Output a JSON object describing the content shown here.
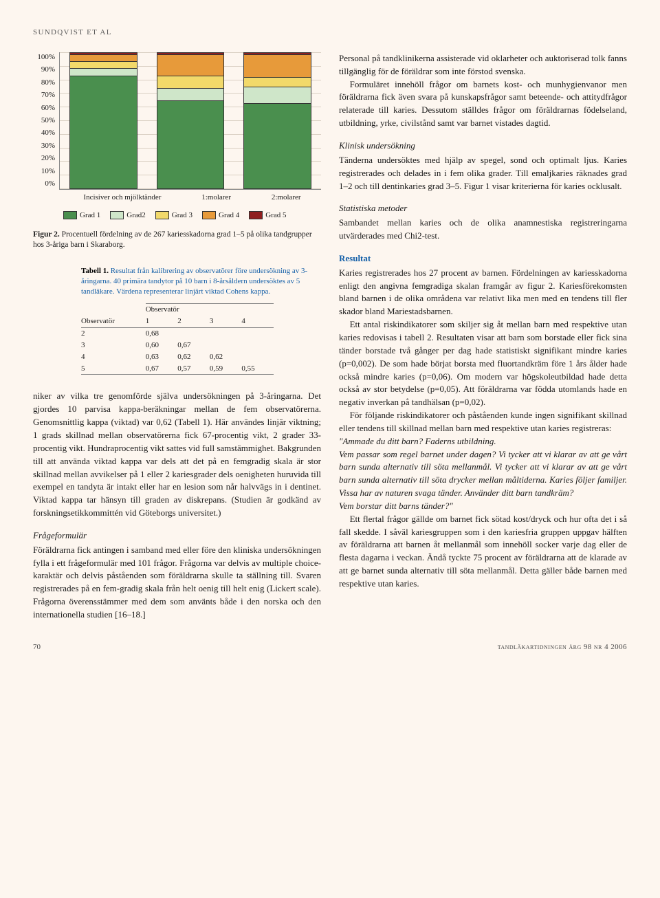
{
  "header": {
    "author": "SUNDQVIST ET AL"
  },
  "chart": {
    "type": "stacked-bar",
    "n_label": "n=267",
    "y_ticks": [
      "0%",
      "10%",
      "20%",
      "30%",
      "40%",
      "50%",
      "60%",
      "70%",
      "80%",
      "90%",
      "100%"
    ],
    "categories": [
      "Incisiver och mjölktänder",
      "1:molarer",
      "2:molarer"
    ],
    "series": [
      {
        "label": "Grad 1",
        "color": "#4a8f4e"
      },
      {
        "label": "Grad2",
        "color": "#cfe6c9"
      },
      {
        "label": "Grad 3",
        "color": "#f2d96a"
      },
      {
        "label": "Grad 4",
        "color": "#e79a3a"
      },
      {
        "label": "Grad 5",
        "color": "#8f1f1f"
      }
    ],
    "stacks": [
      {
        "values": [
          83,
          6,
          5,
          5,
          1
        ]
      },
      {
        "values": [
          65,
          9,
          9,
          16,
          1
        ]
      },
      {
        "values": [
          63,
          12,
          7,
          17,
          1
        ]
      }
    ],
    "caption_strong": "Figur 2.",
    "caption": "Procentuell fördelning av de 267 kariesskadorna grad 1–5 på olika tandgrupper hos 3-åriga barn i Skaraborg."
  },
  "table": {
    "caption_strong": "Tabell 1.",
    "caption": "Resultat från kalibrering av observatörer före undersökning av 3-åringarna. 40 primära tandytor på 10 barn i 8-årsåldern undersöktes av 5 tandläkare. Värdena representerar linjärt viktad Cohens kappa.",
    "corner": "Observatör",
    "group": "Observatör",
    "cols": [
      "1",
      "2",
      "3",
      "4"
    ],
    "rows": [
      {
        "r": "2",
        "v": [
          "0,68",
          "",
          "",
          ""
        ]
      },
      {
        "r": "3",
        "v": [
          "0,60",
          "0,67",
          "",
          ""
        ]
      },
      {
        "r": "4",
        "v": [
          "0,63",
          "0,62",
          "0,62",
          ""
        ]
      },
      {
        "r": "5",
        "v": [
          "0,67",
          "0,57",
          "0,59",
          "0,55"
        ]
      }
    ]
  },
  "left_text": {
    "p1": "niker av vilka tre genomförde själva undersökningen på 3-åringarna. Det gjordes 10 parvisa kappa-beräkningar mellan de fem observatörerna. Genomsnittlig kappa (viktad) var 0,62 (Tabell 1). Här användes linjär viktning; 1 grads skillnad mellan observatörerna fick 67-procentig vikt, 2 grader 33-procentig vikt. Hundraprocentig vikt sattes vid full samstämmighet. Bakgrunden till att använda viktad kappa var dels att det på en femgradig skala är stor skillnad mellan avvikelser på 1 eller 2 kariesgrader dels oenigheten huruvida till exempel en tandyta är intakt eller har en lesion som når halvvägs in i dentinet. Viktad kappa tar hänsyn till graden av diskrepans. (Studien är godkänd av forskningsetikkommittén vid Göteborgs universitet.)",
    "sub1": "Frågeformulär",
    "p2": "Föräldrarna fick antingen i samband med eller före den kliniska undersökningen fylla i ett frågeformulär med 101 frågor. Frågorna var delvis av multiple choice-karaktär och delvis påståenden som föräldrarna skulle ta ställning till. Svaren registrerades på en fem-gradig skala från helt oenig till helt enig (Lickert scale). Frågorna överensstämmer med dem som använts både i den norska och den internationella studien [16–18.]"
  },
  "right_text": {
    "p1": "Personal på tandklinikerna assisterade vid oklarheter och auktoriserad tolk fanns tillgänglig för de föräldrar som inte förstod svenska.",
    "p2": "Formuläret innehöll frågor om barnets kost- och munhygienvanor men föräldrarna fick även svara på kunskapsfrågor samt beteende- och attitydfrågor relaterade till karies. Dessutom ställdes frågor om föräldrarnas födelseland, utbildning, yrke, civilstånd samt var barnet vistades dagtid.",
    "sub1": "Klinisk undersökning",
    "p3": "Tänderna undersöktes med hjälp av spegel, sond och optimalt ljus. Karies registrerades och delades in i fem olika grader. Till emaljkaries räknades grad 1–2 och till dentinkaries grad 3–5. Figur 1 visar kriterierna för karies ocklusalt.",
    "sub2": "Statistiska metoder",
    "p4": "Sambandet mellan karies och de olika anamnestiska registreringarna utvärderades med Chi2-test.",
    "sub3": "Resultat",
    "p5": "Karies registrerades hos 27 procent av barnen. Fördelningen av kariesskadorna enligt den angivna femgradiga skalan framgår av figur 2. Kariesförekomsten bland barnen i de olika områdena var relativt lika men med en tendens till fler skador bland Mariestadsbarnen.",
    "p6": "Ett antal riskindikatorer som skiljer sig åt mellan barn med respektive utan karies redovisas i tabell 2. Resultaten visar att barn som borstade eller fick sina tänder borstade två gånger per dag hade statistiskt signifikant mindre karies (p=0,002). De som hade börjat borsta med fluortandkräm före 1 års ålder hade också mindre karies (p=0,06). Om modern var högskoleutbildad hade detta också av stor betydelse (p=0,05). Att föräldrarna var födda utomlands hade en negativ inverkan på tandhälsan (p=0,02).",
    "p7": "För följande riskindikatorer och påståenden kunde ingen signifikant skillnad eller tendens till skillnad mellan barn med respektive utan karies registreras:",
    "q1": "\"Ammade du ditt barn? Faderns utbildning.",
    "q2": "Vem passar som regel barnet under dagen? Vi tycker att vi klarar av att ge vårt barn sunda alternativ till söta mellanmål. Vi tycker att vi klarar av att ge vårt barn sunda alternativ till söta drycker mellan måltiderna. Karies följer familjer. Vissa har av naturen svaga tänder. Använder ditt barn tandkräm?",
    "q3": "Vem borstar ditt barns tänder?\"",
    "p8": "Ett flertal frågor gällde om barnet fick sötad kost/dryck och hur ofta det i så fall skedde. I såväl kariesgruppen som i den kariesfria gruppen uppgav hälften av föräldrarna att barnen åt mellanmål som innehöll socker varje dag eller de flesta dagarna i veckan. Ändå tyckte 75 procent av föräldrarna att de klarade av att ge barnet sunda alternativ till söta mellanmål. Detta gäller både barnen med respektive utan karies."
  },
  "footer": {
    "page": "70",
    "journal": "tandläkartidningen årg 98 nr 4 2006"
  }
}
